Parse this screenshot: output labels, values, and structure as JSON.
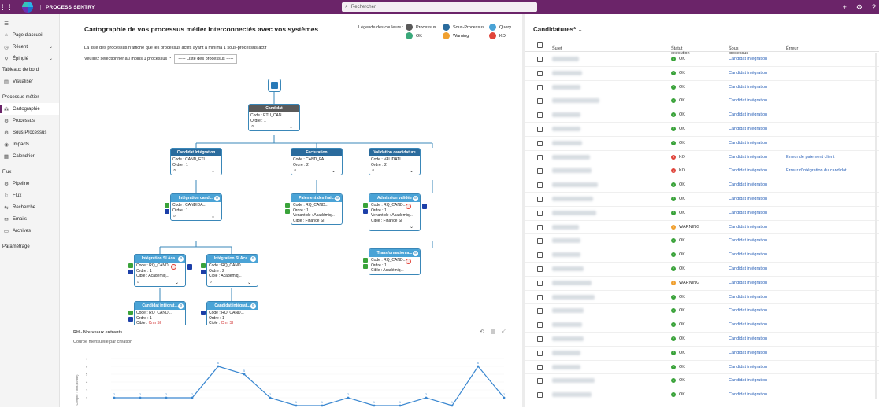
{
  "topbar": {
    "app_name": "PROCESS SENTRY",
    "search_placeholder": "Rechercher"
  },
  "sidebar": {
    "items": [
      {
        "label": "",
        "icon": "hamburger-icon"
      },
      {
        "label": "Page d'accueil",
        "icon": "home-icon"
      },
      {
        "label": "Récent",
        "icon": "clock-icon"
      },
      {
        "label": "Épinglé",
        "icon": "pin-icon"
      }
    ],
    "section_dashboards": "Tableaux de bord",
    "dashboards": [
      {
        "label": "Visualiser",
        "icon": "dashboard-icon"
      }
    ],
    "section_process": "Processus métier",
    "process_items": [
      {
        "label": "Cartographie",
        "icon": "cartography-icon",
        "active": true
      },
      {
        "label": "Processus",
        "icon": "gear-icon"
      },
      {
        "label": "Sous Processus",
        "icon": "subprocess-icon"
      },
      {
        "label": "Impacts",
        "icon": "impact-icon"
      },
      {
        "label": "Calendrier",
        "icon": "calendar-icon"
      }
    ],
    "section_flux": "Flux",
    "flux_items": [
      {
        "label": "Pipeline",
        "icon": "pipeline-icon"
      },
      {
        "label": "Flux",
        "icon": "flux-icon"
      },
      {
        "label": "Recherche",
        "icon": "search-icon"
      },
      {
        "label": "Emails",
        "icon": "mail-icon"
      },
      {
        "label": "Archives",
        "icon": "archive-icon"
      }
    ],
    "settings": "Paramétrage"
  },
  "main": {
    "title": "Cartographie de vos processus métier interconnectés avec vos systèmes",
    "legend_title": "Légende des couleurs :",
    "legend": [
      {
        "label": "Processus",
        "color": "#5a5a5a"
      },
      {
        "label": "Sous-Processus",
        "color": "#2a6b9d"
      },
      {
        "label": "Query",
        "color": "#4aa3d6"
      },
      {
        "label": "OK",
        "color": "#3aa87a"
      },
      {
        "label": "Warning",
        "color": "#f0a030"
      },
      {
        "label": "KO",
        "color": "#e0443a"
      }
    ],
    "note": "La liste des processus n'affiche que les processus actifs ayant à minima 1 sous-processus actif",
    "select_label": "Veuillez sélectionner au moins 1 processus :*",
    "select_value": "----- Liste des processus -----"
  },
  "flow_nodes": {
    "candidat": {
      "title": "Candidat",
      "lines": [
        "Code : ETU_CAN...",
        "Ordre : 1"
      ]
    },
    "cand_integration": {
      "title": "Candidat Intégration",
      "lines": [
        "Code : CAND_ETU",
        "Ordre : 1"
      ]
    },
    "facturation": {
      "title": "Facturation",
      "lines": [
        "Code : CAND_FA...",
        "Ordre : 2"
      ]
    },
    "validation": {
      "title": "Validation candidature",
      "lines": [
        "Code : VALIDATI...",
        "Ordre : 2"
      ]
    },
    "integration_cand": {
      "title": "Intégration candi...",
      "lines": [
        "Code : CANDIDA...",
        "Ordre : 1"
      ]
    },
    "paiement": {
      "title": "Paiement des frai...",
      "lines": [
        "Code : RQ_CAND...",
        "Ordre : 1",
        "Venant de : Académiq...",
        "Cible : Finance SI"
      ]
    },
    "admission": {
      "title": "Admission validée",
      "lines": [
        "Code : RQ_CAND...",
        "Ordre : 1",
        "Venant de : Académiq...",
        "Cible : Finance SI"
      ]
    },
    "integ_si_a": {
      "title": "Intégration SI Aca...",
      "lines": [
        "Code : RQ_CAND...",
        "Ordre : 1",
        "Cible : Académiq..."
      ]
    },
    "integ_si_b": {
      "title": "Intégration SI Aca...",
      "lines": [
        "Code : RQ_CAND...",
        "Ordre : 2",
        "Cible : Académiq..."
      ]
    },
    "transformation": {
      "title": "Transformation a...",
      "lines": [
        "Code : RQ_CAND...",
        "Ordre : 1",
        "Cible : Académiq..."
      ]
    },
    "cand_integ_a": {
      "title": "Candidat intégrat...",
      "lines": [
        "Code : RQ_CAND...",
        "Ordre : 1"
      ],
      "target_label": "Cible :",
      "target_value": "Crm SI"
    },
    "cand_integ_b": {
      "title": "Candidat intégrat...",
      "lines": [
        "Code : RQ_CAND...",
        "Ordre : 1"
      ],
      "target_label": "Cible :",
      "target_value": "Crm SI"
    }
  },
  "chart_data": {
    "type": "line",
    "title": "RH - Nouveaux entrants",
    "subtitle": "Courbe mensuelle par création",
    "ylabel": "Compte : tous (Entité)",
    "ylim": [
      0,
      7
    ],
    "yticks": [
      "7",
      "6",
      "5",
      "4",
      "3",
      "2"
    ],
    "series": [
      {
        "values": [
          2,
          2,
          2,
          2,
          6,
          5,
          2,
          1,
          1,
          2,
          1,
          1,
          2,
          1,
          6,
          2
        ],
        "color": "#3a87d0"
      }
    ]
  },
  "right": {
    "title": "Candidatures*",
    "columns": {
      "subject": "Sujet",
      "status": "Statut exécution",
      "subprocess": "Sous processus",
      "error": "Erreur"
    },
    "rows": [
      {
        "status": "OK",
        "sub": "Candidat intégration",
        "error": "",
        "w": 34
      },
      {
        "status": "OK",
        "sub": "Candidat intégration",
        "error": "",
        "w": 38
      },
      {
        "status": "OK",
        "sub": "Candidat intégration",
        "error": "",
        "w": 36
      },
      {
        "status": "OK",
        "sub": "Candidat intégration",
        "error": "",
        "w": 60
      },
      {
        "status": "OK",
        "sub": "Candidat intégration",
        "error": "",
        "w": 36
      },
      {
        "status": "OK",
        "sub": "Candidat intégration",
        "error": "",
        "w": 36
      },
      {
        "status": "OK",
        "sub": "Candidat intégration",
        "error": "",
        "w": 38
      },
      {
        "status": "KO",
        "sub": "Candidat intégration",
        "error": "Erreur de paiement client",
        "w": 48
      },
      {
        "status": "KO",
        "sub": "Candidat intégration",
        "error": "Erreur d'intégration du candidat",
        "w": 50
      },
      {
        "status": "OK",
        "sub": "Candidat intégration",
        "error": "",
        "w": 58
      },
      {
        "status": "OK",
        "sub": "Candidat intégration",
        "error": "",
        "w": 52
      },
      {
        "status": "OK",
        "sub": "Candidat intégration",
        "error": "",
        "w": 56
      },
      {
        "status": "WARNING",
        "sub": "Candidat intégration",
        "error": "",
        "w": 34
      },
      {
        "status": "OK",
        "sub": "Candidat intégration",
        "error": "",
        "w": 36
      },
      {
        "status": "OK",
        "sub": "Candidat intégration",
        "error": "",
        "w": 36
      },
      {
        "status": "OK",
        "sub": "Candidat intégration",
        "error": "",
        "w": 40
      },
      {
        "status": "WARNING",
        "sub": "Candidat intégration",
        "error": "",
        "w": 50
      },
      {
        "status": "OK",
        "sub": "Candidat intégration",
        "error": "",
        "w": 54
      },
      {
        "status": "OK",
        "sub": "Candidat intégration",
        "error": "",
        "w": 40
      },
      {
        "status": "OK",
        "sub": "Candidat intégration",
        "error": "",
        "w": 38
      },
      {
        "status": "OK",
        "sub": "Candidat intégration",
        "error": "",
        "w": 40
      },
      {
        "status": "OK",
        "sub": "Candidat intégration",
        "error": "",
        "w": 36
      },
      {
        "status": "OK",
        "sub": "Candidat intégration",
        "error": "",
        "w": 36
      },
      {
        "status": "OK",
        "sub": "Candidat intégration",
        "error": "",
        "w": 54
      },
      {
        "status": "OK",
        "sub": "Candidat intégration",
        "error": "",
        "w": 50
      }
    ]
  }
}
